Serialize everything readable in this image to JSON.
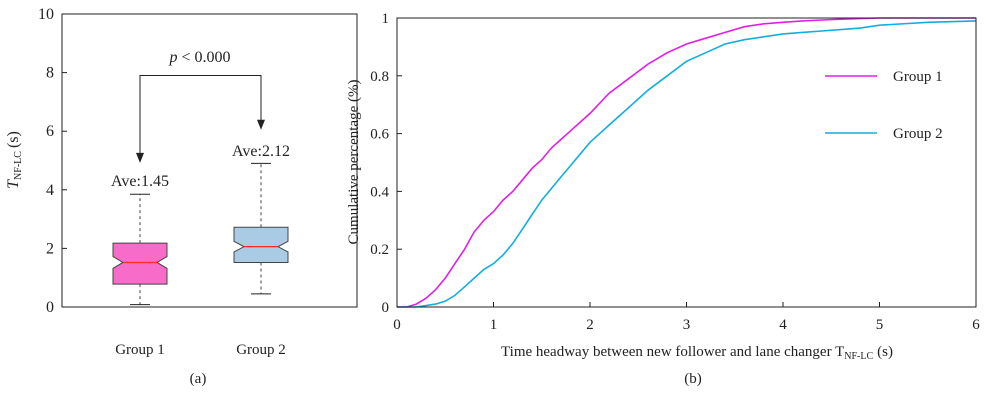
{
  "chart_data": [
    {
      "id": "a",
      "type": "box",
      "panel_label": "(a)",
      "ylabel_main": "T",
      "ylabel_sub": "NF-LC",
      "ylabel_unit": "(s)",
      "ylim": [
        0,
        10
      ],
      "yticks": [
        "0",
        "2",
        "4",
        "6",
        "8",
        "10"
      ],
      "yticks_values": [
        0,
        2,
        4,
        6,
        8,
        10
      ],
      "categories": [
        "Group 1",
        "Group 2"
      ],
      "boxes": [
        {
          "name": "Group 1",
          "min": 0.08,
          "q1": 0.78,
          "median": 1.52,
          "q3": 2.18,
          "max": 3.85,
          "notch_low": 1.32,
          "notch_high": 1.72,
          "color": "#f76bc9"
        },
        {
          "name": "Group 2",
          "min": 0.45,
          "q1": 1.52,
          "median": 2.06,
          "q3": 2.72,
          "max": 4.9,
          "notch_low": 1.88,
          "notch_high": 2.24,
          "color": "#a9cbe3"
        }
      ],
      "median_color": "#ff2a2a",
      "annotations": {
        "ave1": "Ave:1.45",
        "ave2": "Ave:2.12",
        "p_italic": "p",
        "p_rest": " < 0.000"
      }
    },
    {
      "id": "b",
      "type": "line",
      "panel_label": "(b)",
      "xlabel_main": "Time headway between new follower and lane changer T",
      "xlabel_sub": "NF-LC",
      "xlabel_unit": "(s)",
      "ylabel": "Cumulative percentage (%)",
      "xlim": [
        0,
        6
      ],
      "ylim": [
        0,
        1
      ],
      "xticks": [
        "0",
        "1",
        "2",
        "3",
        "4",
        "5",
        "6"
      ],
      "xticks_values": [
        0,
        1,
        2,
        3,
        4,
        5,
        6
      ],
      "yticks": [
        "0",
        "0.2",
        "0.4",
        "0.6",
        "0.8",
        "1"
      ],
      "yticks_values": [
        0,
        0.2,
        0.4,
        0.6,
        0.8,
        1
      ],
      "series": [
        {
          "name": "Group 1",
          "color": "#e020e8",
          "x": [
            0,
            0.1,
            0.2,
            0.3,
            0.4,
            0.5,
            0.6,
            0.7,
            0.8,
            0.9,
            1.0,
            1.1,
            1.2,
            1.3,
            1.4,
            1.5,
            1.6,
            1.7,
            1.8,
            1.9,
            2.0,
            2.2,
            2.4,
            2.6,
            2.8,
            3.0,
            3.2,
            3.4,
            3.6,
            3.8,
            4.0,
            4.2,
            4.4,
            4.6,
            4.8,
            5.0,
            5.5,
            6.0
          ],
          "y": [
            0,
            0.0,
            0.01,
            0.03,
            0.06,
            0.1,
            0.15,
            0.2,
            0.26,
            0.3,
            0.33,
            0.37,
            0.4,
            0.44,
            0.48,
            0.51,
            0.55,
            0.58,
            0.61,
            0.64,
            0.67,
            0.74,
            0.79,
            0.84,
            0.88,
            0.91,
            0.93,
            0.95,
            0.97,
            0.98,
            0.985,
            0.99,
            0.993,
            0.996,
            0.998,
            1.0,
            1.0,
            1.0
          ]
        },
        {
          "name": "Group 2",
          "color": "#12aee0",
          "x": [
            0,
            0.2,
            0.4,
            0.5,
            0.6,
            0.7,
            0.8,
            0.9,
            1.0,
            1.1,
            1.2,
            1.3,
            1.4,
            1.5,
            1.6,
            1.7,
            1.8,
            1.9,
            2.0,
            2.2,
            2.4,
            2.6,
            2.8,
            3.0,
            3.2,
            3.4,
            3.6,
            3.8,
            4.0,
            4.2,
            4.4,
            4.6,
            4.8,
            5.0,
            5.5,
            6.0
          ],
          "y": [
            0,
            0.0,
            0.01,
            0.02,
            0.04,
            0.07,
            0.1,
            0.13,
            0.15,
            0.18,
            0.22,
            0.27,
            0.32,
            0.37,
            0.41,
            0.45,
            0.49,
            0.53,
            0.57,
            0.63,
            0.69,
            0.75,
            0.8,
            0.85,
            0.88,
            0.91,
            0.925,
            0.935,
            0.945,
            0.95,
            0.955,
            0.96,
            0.965,
            0.975,
            0.985,
            0.99
          ]
        }
      ],
      "legend_placement": "right"
    }
  ]
}
